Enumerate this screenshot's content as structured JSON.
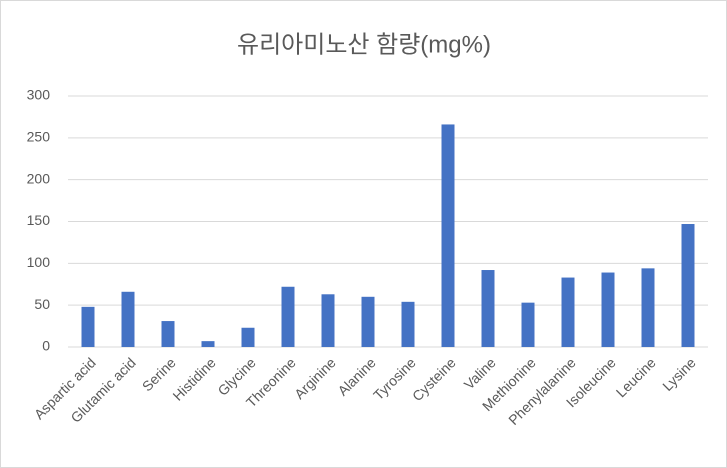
{
  "chart_data": {
    "type": "bar",
    "title": "유리아미노산 함량(mg%)",
    "categories": [
      "Aspartic acid",
      "Glutamic acid",
      "Serine",
      "Histidine",
      "Glycine",
      "Threonine",
      "Arginine",
      "Alanine",
      "Tyrosine",
      "Cysteine",
      "Valine",
      "Methionine",
      "Phenylalanine",
      "Isoleucine",
      "Leucine",
      "Lysine"
    ],
    "values": [
      48,
      66,
      31,
      7,
      23,
      72,
      63,
      60,
      54,
      266,
      92,
      53,
      83,
      89,
      94,
      147
    ],
    "color": "#4472c4",
    "ylim": [
      0,
      300
    ],
    "yticks": [
      0,
      50,
      100,
      150,
      200,
      250,
      300
    ],
    "grid": true
  }
}
